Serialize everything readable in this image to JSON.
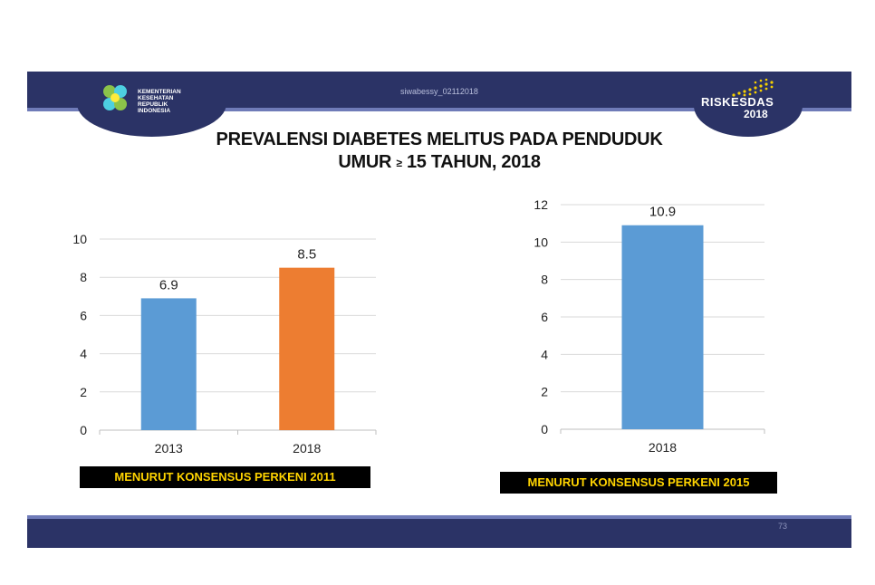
{
  "header": {
    "logo_left_lines": [
      "KEMENTERIAN",
      "KESEHATAN",
      "REPUBLIK",
      "INDONESIA"
    ],
    "logo_right_word": "RISKESDAS",
    "logo_right_year": "2018",
    "watermark": "siwabessy_02112018"
  },
  "title": {
    "line1": "PREVALENSI DIABETES MELITUS PADA PENDUDUK",
    "line2_prefix": "UMUR",
    "line2_symbol": "≥",
    "line2_suffix": "15 TAHUN, 2018"
  },
  "footer": {
    "page_number": "73"
  },
  "colors": {
    "navy": "#2b3366",
    "blue_bar": "#5b9bd5",
    "orange_bar": "#ed7d31",
    "caption_text": "#ffd400"
  },
  "chart_data": [
    {
      "type": "bar",
      "categories": [
        "2013",
        "2018"
      ],
      "values": [
        6.9,
        8.5
      ],
      "data_labels": [
        "6.9",
        "8.5"
      ],
      "bar_colors": [
        "#5b9bd5",
        "#ed7d31"
      ],
      "ylim": [
        0,
        10
      ],
      "yticks": [
        "0",
        "2",
        "4",
        "6",
        "8",
        "10"
      ],
      "grid": true,
      "caption": "MENURUT KONSENSUS PERKENI 2011"
    },
    {
      "type": "bar",
      "categories": [
        "2018"
      ],
      "values": [
        10.9
      ],
      "data_labels": [
        "10.9"
      ],
      "bar_colors": [
        "#5b9bd5"
      ],
      "ylim": [
        0,
        12
      ],
      "yticks": [
        "0",
        "2",
        "4",
        "6",
        "8",
        "10",
        "12"
      ],
      "grid": true,
      "caption": "MENURUT KONSENSUS PERKENI 2015"
    }
  ]
}
